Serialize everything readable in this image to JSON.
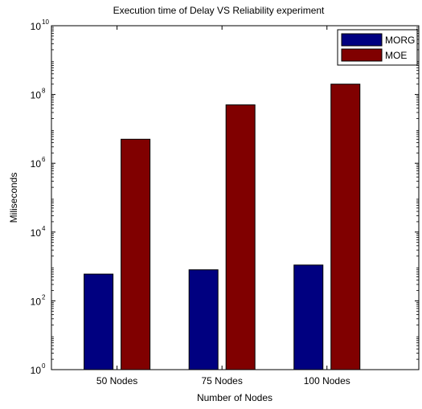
{
  "chart_data": {
    "type": "bar",
    "title": "Execution time of Delay VS Reliability experiment",
    "xlabel": "Number of Nodes",
    "ylabel": "Miliseconds",
    "categories": [
      "50 Nodes",
      "75 Nodes",
      "100 Nodes"
    ],
    "yscale": "log",
    "ylim": [
      1,
      10000000000
    ],
    "ytick_base": "10",
    "ytick_exponents": [
      "0",
      "2",
      "4",
      "6",
      "8",
      "10"
    ],
    "legend_position": "top-right",
    "series": [
      {
        "name": "MORG",
        "color": "#000080",
        "values": [
          600,
          800,
          1100
        ]
      },
      {
        "name": "MOE",
        "color": "#800000",
        "values": [
          5000000,
          50000000,
          200000000
        ]
      }
    ]
  }
}
